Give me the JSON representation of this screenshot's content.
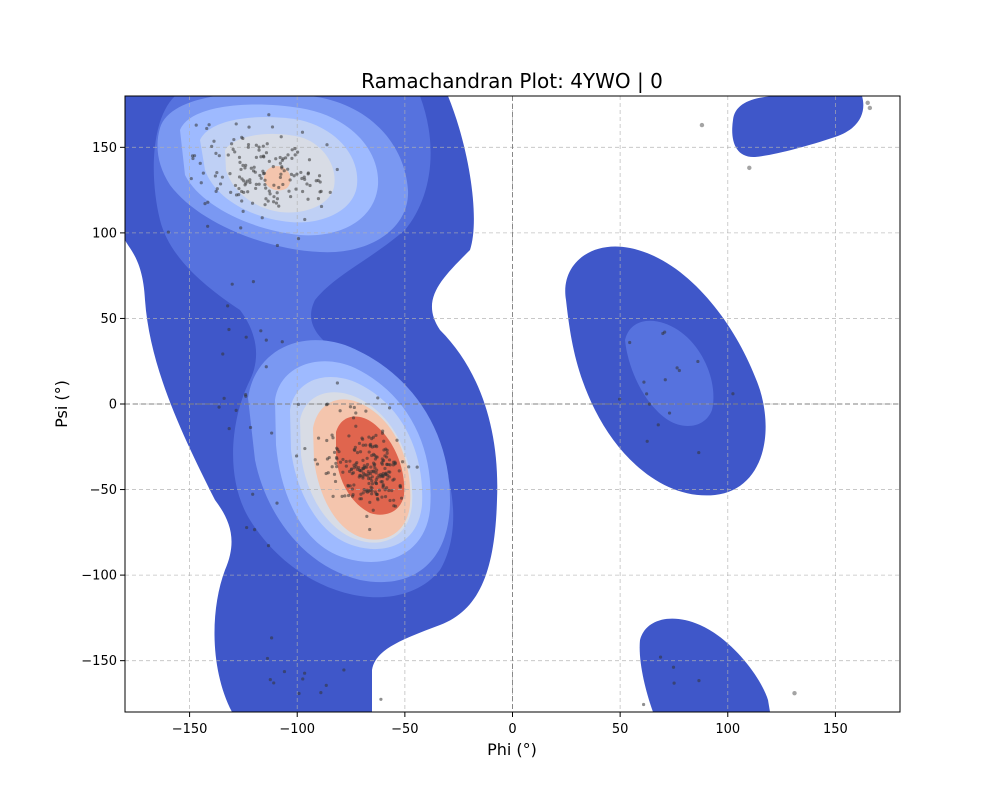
{
  "chart_data": {
    "type": "scatter",
    "title": "Ramachandran Plot: 4YWO | 0",
    "xlabel": "Phi (°)",
    "ylabel": "Psi (°)",
    "xlim": [
      -180,
      180
    ],
    "ylim": [
      -180,
      180
    ],
    "xticks": [
      -150,
      -100,
      -50,
      0,
      50,
      100,
      150
    ],
    "yticks": [
      -150,
      -100,
      -50,
      0,
      50,
      100,
      150
    ],
    "xtick_labels": [
      "−150",
      "−100",
      "−50",
      "0",
      "50",
      "100",
      "150"
    ],
    "ytick_labels": [
      "−150",
      "−100",
      "−50",
      "0",
      "50",
      "100",
      "150"
    ],
    "grid": true,
    "density_background": "kde-contour",
    "colormap": "coolwarm",
    "contour_colors": [
      "#3f57c9",
      "#5672de",
      "#7a98f2",
      "#9ebaff",
      "#bfd0f5",
      "#d8dce5",
      "#f4c5ad",
      "#e0654e"
    ],
    "point_color": "#333333",
    "highlight_points": [
      {
        "x": 88,
        "y": 163
      },
      {
        "x": 110,
        "y": 138
      },
      {
        "x": 131,
        "y": -169
      },
      {
        "x": 165,
        "y": 176
      },
      {
        "x": 166,
        "y": 173
      }
    ]
  }
}
